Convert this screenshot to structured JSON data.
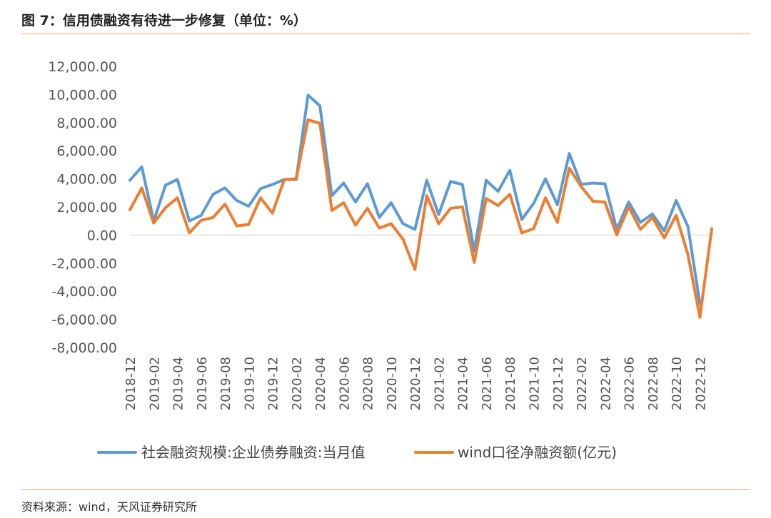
{
  "header": {
    "title": "图 7：信用债融资有待进一步修复（单位：%）"
  },
  "footer": {
    "source": "资料来源：wind，天风证券研究所"
  },
  "chart_data": {
    "type": "line",
    "title": "",
    "xlabel": "",
    "ylabel": "",
    "ylim": [
      -8000,
      12000
    ],
    "yticks": [
      12000,
      10000,
      8000,
      6000,
      4000,
      2000,
      0,
      -2000,
      -4000,
      -6000,
      -8000
    ],
    "ytick_labels": [
      "12,000.00",
      "10,000.00",
      "8,000.00",
      "6,000.00",
      "4,000.00",
      "2,000.00",
      "0.00",
      "-2,000.00",
      "-4,000.00",
      "-6,000.00",
      "-8,000.00"
    ],
    "grid": false,
    "legend_position": "bottom",
    "x": [
      "2018-12",
      "2019-01",
      "2019-02",
      "2019-03",
      "2019-04",
      "2019-05",
      "2019-06",
      "2019-07",
      "2019-08",
      "2019-09",
      "2019-10",
      "2019-11",
      "2019-12",
      "2020-01",
      "2020-02",
      "2020-03",
      "2020-04",
      "2020-05",
      "2020-06",
      "2020-07",
      "2020-08",
      "2020-09",
      "2020-10",
      "2020-11",
      "2020-12",
      "2021-01",
      "2021-02",
      "2021-03",
      "2021-04",
      "2021-05",
      "2021-06",
      "2021-07",
      "2021-08",
      "2021-09",
      "2021-10",
      "2021-11",
      "2021-12",
      "2022-01",
      "2022-02",
      "2022-03",
      "2022-04",
      "2022-05",
      "2022-06",
      "2022-07",
      "2022-08",
      "2022-09",
      "2022-10",
      "2022-11",
      "2022-12",
      "2023-01"
    ],
    "xtick_labels": [
      "2018-12",
      "2019-02",
      "2019-04",
      "2019-06",
      "2019-08",
      "2019-10",
      "2019-12",
      "2020-02",
      "2020-04",
      "2020-06",
      "2020-08",
      "2020-10",
      "2020-12",
      "2021-02",
      "2021-04",
      "2021-06",
      "2021-08",
      "2021-10",
      "2021-12",
      "2022-02",
      "2022-04",
      "2022-06",
      "2022-08",
      "2022-10",
      "2022-12"
    ],
    "series": [
      {
        "name": "社会融资规模:企业债券融资:当月值",
        "color": "#5b9bd5",
        "values": [
          3900,
          4850,
          1000,
          3550,
          3950,
          1000,
          1400,
          2900,
          3350,
          2450,
          2050,
          3300,
          3600,
          3950,
          3950,
          9950,
          9200,
          2800,
          3700,
          2350,
          3650,
          1250,
          2300,
          800,
          400,
          3900,
          1450,
          3800,
          3600,
          -1150,
          3900,
          3100,
          4600,
          1100,
          2250,
          4000,
          2150,
          5800,
          3600,
          3700,
          3650,
          400,
          2350,
          900,
          1500,
          300,
          2450,
          600,
          -4900,
          null
        ]
      },
      {
        "name": "wind口径净融资额(亿元)",
        "color": "#ed7d31",
        "values": [
          1800,
          3350,
          850,
          1950,
          2650,
          150,
          1050,
          1250,
          2200,
          650,
          750,
          2650,
          1550,
          3950,
          4000,
          8200,
          7950,
          1750,
          2300,
          700,
          1900,
          500,
          800,
          -300,
          -2450,
          2800,
          800,
          1900,
          2000,
          -1950,
          2600,
          2100,
          2900,
          150,
          450,
          2650,
          900,
          4750,
          3450,
          2400,
          2350,
          0,
          2000,
          400,
          1250,
          -200,
          1400,
          -1400,
          -5850,
          450
        ]
      }
    ]
  }
}
